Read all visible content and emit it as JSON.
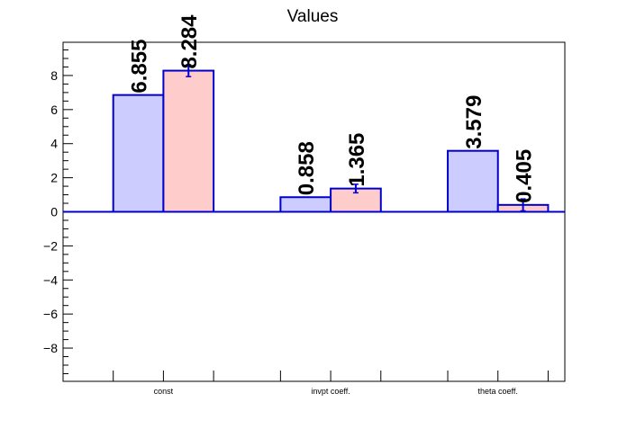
{
  "chart_data": {
    "type": "bar",
    "title": "Values",
    "xlabel": "",
    "ylabel": "",
    "ylim": [
      -9.95,
      9.95
    ],
    "y_ticks": [
      -8,
      -6,
      -4,
      -2,
      0,
      2,
      4,
      6,
      8
    ],
    "grid": false,
    "legend": "none",
    "categories": [
      "const",
      "invpt coeff.",
      "theta coeff."
    ],
    "series": [
      {
        "values": [
          6.855,
          0.858,
          3.579
        ],
        "errors": [
          0,
          0,
          0
        ],
        "labels": [
          "6.855",
          "0.858",
          "3.579"
        ],
        "fill": "#ccccff",
        "stroke": "#0000cc"
      },
      {
        "values": [
          8.284,
          1.365,
          0.405
        ],
        "errors": [
          0.35,
          0.25,
          0.35
        ],
        "labels": [
          "8.284",
          "1.365",
          "0.405"
        ],
        "fill": "#ffcccc",
        "stroke": "#0000cc"
      }
    ]
  }
}
